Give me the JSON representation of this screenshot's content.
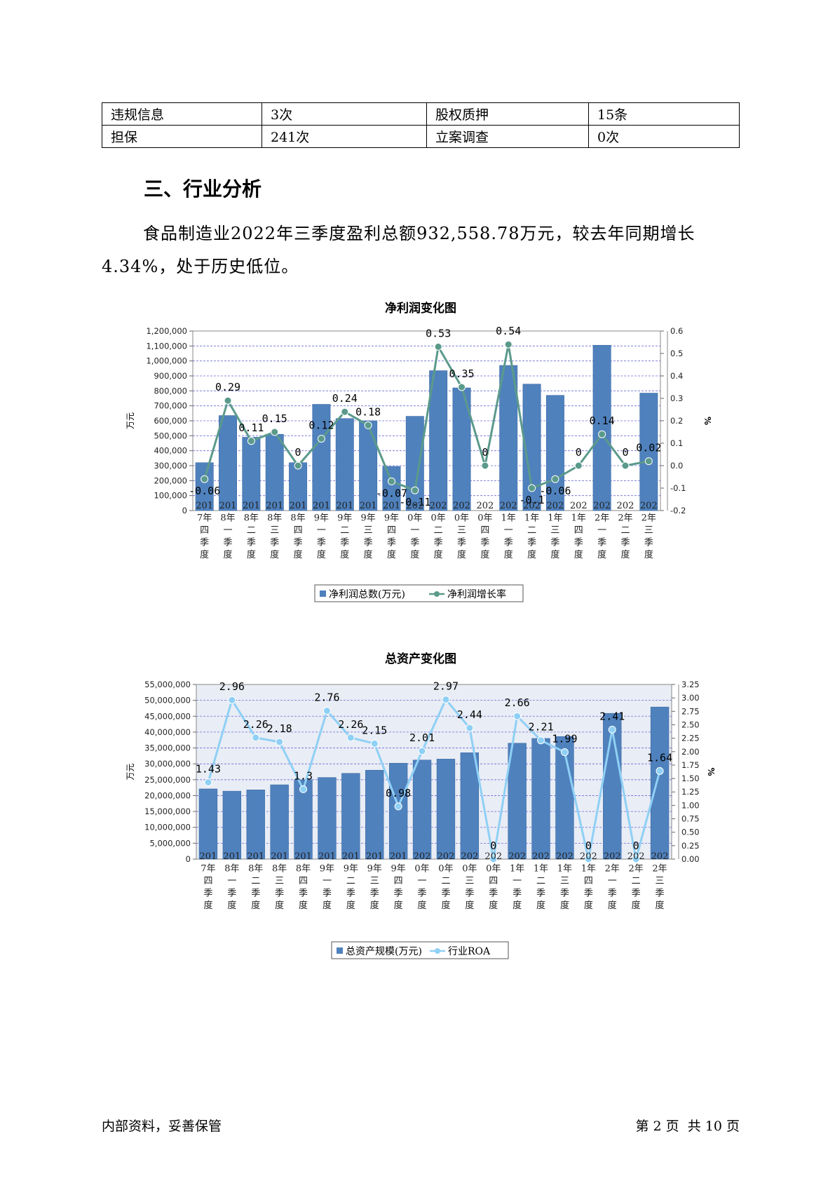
{
  "table": {
    "rows": [
      [
        "违规信息",
        "3次",
        "股权质押",
        "15条"
      ],
      [
        "担保",
        "241次",
        "立案调查",
        "0次"
      ]
    ]
  },
  "section_title": "三、行业分析",
  "paragraph": "食品制造业2022年三季度盈利总额932,558.78万元，较去年同期增长4.34%，处于历史低位。",
  "chart_data": [
    {
      "type": "bar",
      "title": "净利润变化图",
      "ylabel": "万元",
      "y2label": "%",
      "categories": [
        "2017年四季度",
        "2018年一季度",
        "2018年二季度",
        "2018年三季度",
        "2018年四季度",
        "2019年一季度",
        "2019年二季度",
        "2019年三季度",
        "2019年四季度",
        "2020年一季度",
        "2020年二季度",
        "2020年三季度",
        "2020年四季度",
        "2021年一季度",
        "2021年二季度",
        "2021年三季度",
        "2021年四季度",
        "2022年一季度",
        "2022年二季度",
        "2022年三季度"
      ],
      "category_lines": [
        [
          "201",
          "7年",
          "四",
          "季",
          "度"
        ],
        [
          "201",
          "8年",
          "一",
          "季",
          "度"
        ],
        [
          "201",
          "8年",
          "二",
          "季",
          "度"
        ],
        [
          "201",
          "8年",
          "三",
          "季",
          "度"
        ],
        [
          "201",
          "8年",
          "四",
          "季",
          "度"
        ],
        [
          "201",
          "9年",
          "一",
          "季",
          "度"
        ],
        [
          "201",
          "9年",
          "二",
          "季",
          "度"
        ],
        [
          "201",
          "9年",
          "三",
          "季",
          "度"
        ],
        [
          "201",
          "9年",
          "四",
          "季",
          "度"
        ],
        [
          "202",
          "0年",
          "一",
          "季",
          "度"
        ],
        [
          "202",
          "0年",
          "二",
          "季",
          "度"
        ],
        [
          "202",
          "0年",
          "三",
          "季",
          "度"
        ],
        [
          "202",
          "0年",
          "四",
          "季",
          "度"
        ],
        [
          "202",
          "1年",
          "一",
          "季",
          "度"
        ],
        [
          "202",
          "1年",
          "二",
          "季",
          "度"
        ],
        [
          "202",
          "1年",
          "三",
          "季",
          "度"
        ],
        [
          "202",
          "1年",
          "四",
          "季",
          "度"
        ],
        [
          "202",
          "2年",
          "一",
          "季",
          "度"
        ],
        [
          "202",
          "2年",
          "二",
          "季",
          "度"
        ],
        [
          "202",
          "2年",
          "三",
          "季",
          "度"
        ]
      ],
      "series": [
        {
          "name": "净利润总数(万元)",
          "type": "bar",
          "color": "#4f81bd",
          "values": [
            320000,
            635000,
            490000,
            510000,
            320000,
            710000,
            615000,
            600000,
            295000,
            630000,
            935000,
            820000,
            null,
            970000,
            845000,
            770000,
            null,
            1105000,
            null,
            785000
          ]
        },
        {
          "name": "净利润增长率",
          "type": "line",
          "axis": "right",
          "color": "#5b9a8b",
          "values": [
            -0.06,
            0.29,
            0.11,
            0.15,
            0,
            0.12,
            0.24,
            0.18,
            -0.07,
            -0.11,
            0.53,
            0.35,
            0,
            0.54,
            -0.1,
            -0.06,
            0,
            0.14,
            0,
            0.02
          ],
          "labels": [
            "-0.06",
            "0.29",
            "0.11",
            "0.15",
            "0",
            "0.12",
            "0.24",
            "0.18",
            "-0.07",
            "-0.11",
            "0.53",
            "0.35",
            "0",
            "0.54",
            "-0.1",
            "-0.06",
            "0",
            "0.14",
            "0",
            "0.02"
          ]
        }
      ],
      "ylim": [
        0,
        1200000
      ],
      "yticks": [
        "0",
        "100,000",
        "200,000",
        "300,000",
        "400,000",
        "500,000",
        "600,000",
        "700,000",
        "800,000",
        "900,000",
        "1,000,000",
        "1,100,000",
        "1,200,000"
      ],
      "y2lim": [
        -0.2,
        0.6
      ],
      "y2ticks": [
        "-0.2",
        "-0.1",
        "0.0",
        "0.1",
        "0.2",
        "0.3",
        "0.4",
        "0.5",
        "0.6"
      ],
      "grid": true,
      "legend": "bottom"
    },
    {
      "type": "bar",
      "title": "总资产变化图",
      "ylabel": "万元",
      "y2label": "%",
      "categories": [
        "2017年四季度",
        "2018年一季度",
        "2018年二季度",
        "2018年三季度",
        "2018年四季度",
        "2019年一季度",
        "2019年二季度",
        "2019年三季度",
        "2019年四季度",
        "2020年一季度",
        "2020年二季度",
        "2020年三季度",
        "2020年四季度",
        "2021年一季度",
        "2021年二季度",
        "2021年三季度",
        "2021年四季度",
        "2022年一季度",
        "2022年二季度",
        "2022年三季度"
      ],
      "category_lines": [
        [
          "201",
          "7年",
          "四",
          "季",
          "度"
        ],
        [
          "201",
          "8年",
          "一",
          "季",
          "度"
        ],
        [
          "201",
          "8年",
          "二",
          "季",
          "度"
        ],
        [
          "201",
          "8年",
          "三",
          "季",
          "度"
        ],
        [
          "201",
          "8年",
          "四",
          "季",
          "度"
        ],
        [
          "201",
          "9年",
          "一",
          "季",
          "度"
        ],
        [
          "201",
          "9年",
          "二",
          "季",
          "度"
        ],
        [
          "201",
          "9年",
          "三",
          "季",
          "度"
        ],
        [
          "201",
          "9年",
          "四",
          "季",
          "度"
        ],
        [
          "202",
          "0年",
          "一",
          "季",
          "度"
        ],
        [
          "202",
          "0年",
          "二",
          "季",
          "度"
        ],
        [
          "202",
          "0年",
          "三",
          "季",
          "度"
        ],
        [
          "202",
          "0年",
          "四",
          "季",
          "度"
        ],
        [
          "202",
          "1年",
          "一",
          "季",
          "度"
        ],
        [
          "202",
          "1年",
          "二",
          "季",
          "度"
        ],
        [
          "202",
          "1年",
          "三",
          "季",
          "度"
        ],
        [
          "202",
          "1年",
          "四",
          "季",
          "度"
        ],
        [
          "202",
          "2年",
          "一",
          "季",
          "度"
        ],
        [
          "202",
          "2年",
          "二",
          "季",
          "度"
        ],
        [
          "202",
          "2年",
          "三",
          "季",
          "度"
        ]
      ],
      "series": [
        {
          "name": "总资产规模(万元)",
          "type": "bar",
          "color": "#4f81bd",
          "values": [
            22100000,
            21400000,
            21800000,
            23400000,
            25000000,
            25700000,
            27000000,
            28000000,
            30200000,
            31200000,
            31500000,
            33500000,
            null,
            36500000,
            38000000,
            38600000,
            null,
            45900000,
            null,
            47900000
          ]
        },
        {
          "name": "行业ROA",
          "type": "line",
          "axis": "right",
          "color": "#8fd0f5",
          "values": [
            1.43,
            2.96,
            2.26,
            2.18,
            1.3,
            2.76,
            2.26,
            2.15,
            0.98,
            2.01,
            2.97,
            2.44,
            0,
            2.66,
            2.21,
            1.99,
            0,
            2.41,
            0,
            1.64
          ],
          "labels": [
            "1.43",
            "2.96",
            "2.26",
            "2.18",
            "1.3",
            "2.76",
            "2.26",
            "2.15",
            "0.98",
            "2.01",
            "2.97",
            "2.44",
            "0",
            "2.66",
            "2.21",
            "1.99",
            "0",
            "2.41",
            "0",
            "1.64"
          ]
        }
      ],
      "ylim": [
        0,
        55000000
      ],
      "yticks": [
        "0",
        "5,000,000",
        "10,000,000",
        "15,000,000",
        "20,000,000",
        "25,000,000",
        "30,000,000",
        "35,000,000",
        "40,000,000",
        "45,000,000",
        "50,000,000",
        "55,000,000"
      ],
      "y2lim": [
        0,
        3.25
      ],
      "y2ticks": [
        "0.00",
        "0.25",
        "0.50",
        "0.75",
        "1.00",
        "1.25",
        "1.50",
        "1.75",
        "2.00",
        "2.25",
        "2.50",
        "2.75",
        "3.00",
        "3.25"
      ],
      "grid": true,
      "legend": "bottom"
    }
  ],
  "footer": {
    "left": "内部资料，妥善保管",
    "right": "第 2 页  共 10 页"
  }
}
